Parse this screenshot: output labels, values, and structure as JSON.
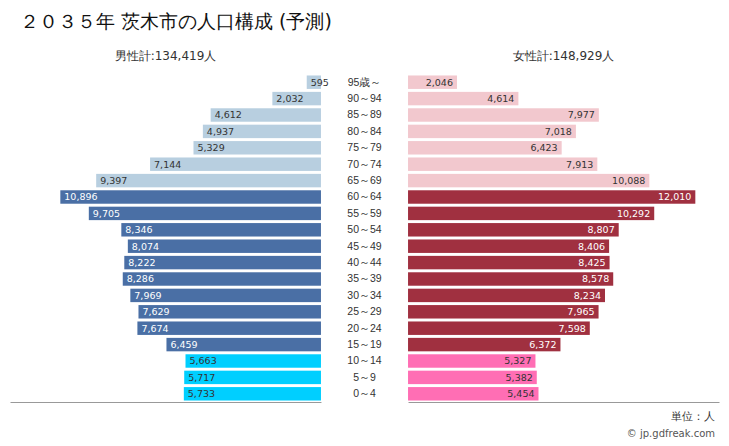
{
  "chart_data": {
    "type": "bar",
    "orientation": "horizontal",
    "title": "２０３５年 茨木市の人口構成 (予測)",
    "categories": [
      "95歳～",
      "90～94",
      "85～89",
      "80～84",
      "75～79",
      "70～74",
      "65～69",
      "60～64",
      "55～59",
      "50～54",
      "45～49",
      "40～44",
      "35～39",
      "30～34",
      "25～29",
      "20～24",
      "15～19",
      "10～14",
      "5～9",
      "0～4"
    ],
    "series": [
      {
        "name": "男性計:134,419人",
        "values": [
          595,
          2032,
          4612,
          4937,
          5329,
          7144,
          9397,
          10896,
          9705,
          8346,
          8074,
          8222,
          8286,
          7969,
          7629,
          7674,
          6459,
          5663,
          5717,
          5733
        ],
        "value_labels": [
          "595",
          "2,032",
          "4,612",
          "4,937",
          "5,329",
          "7,144",
          "9,397",
          "10,896",
          "9,705",
          "8,346",
          "8,074",
          "8,222",
          "8,286",
          "7,969",
          "7,629",
          "7,674",
          "6,459",
          "5,663",
          "5,717",
          "5,733"
        ],
        "colors": [
          "#b8cfe0",
          "#b8cfe0",
          "#b8cfe0",
          "#b8cfe0",
          "#b8cfe0",
          "#b8cfe0",
          "#b8cfe0",
          "#4a6fa5",
          "#4a6fa5",
          "#4a6fa5",
          "#4a6fa5",
          "#4a6fa5",
          "#4a6fa5",
          "#4a6fa5",
          "#4a6fa5",
          "#4a6fa5",
          "#4a6fa5",
          "#00cfff",
          "#00cfff",
          "#00cfff"
        ]
      },
      {
        "name": "女性計:148,929人",
        "values": [
          2046,
          4614,
          7977,
          7018,
          6423,
          7913,
          10088,
          12010,
          10292,
          8807,
          8406,
          8425,
          8578,
          8234,
          7965,
          7598,
          6372,
          5327,
          5382,
          5454
        ],
        "value_labels": [
          "2,046",
          "4,614",
          "7,977",
          "7,018",
          "6,423",
          "7,913",
          "10,088",
          "12,010",
          "10,292",
          "8,807",
          "8,406",
          "8,425",
          "8,578",
          "8,234",
          "7,965",
          "7,598",
          "6,372",
          "5,327",
          "5,382",
          "5,454"
        ],
        "colors": [
          "#f2c8ce",
          "#f2c8ce",
          "#f2c8ce",
          "#f2c8ce",
          "#f2c8ce",
          "#f2c8ce",
          "#f2c8ce",
          "#a03040",
          "#a03040",
          "#a03040",
          "#a03040",
          "#a03040",
          "#a03040",
          "#a03040",
          "#a03040",
          "#a03040",
          "#a03040",
          "#ff6eb4",
          "#ff6eb4",
          "#ff6eb4"
        ]
      }
    ],
    "xlim": [
      0,
      13000
    ],
    "data_labels": true,
    "tick_labels": "y",
    "grid": false,
    "annotations": [
      "単位：人",
      "© jp.gdfreak.com"
    ]
  }
}
